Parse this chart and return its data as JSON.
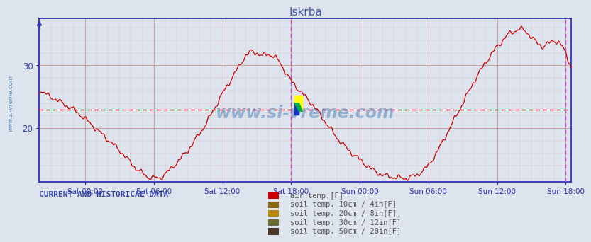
{
  "title": "Iskrba",
  "title_color": "#4455aa",
  "bg_color": "#dde4ee",
  "plot_bg_color": "#dde4ee",
  "line_color": "#cc0000",
  "hline_color": "#cc0000",
  "hline_y": 23.0,
  "vline_color": "#cc44cc",
  "ylim": [
    11.5,
    37.5
  ],
  "yticks": [
    20,
    30
  ],
  "xlabel_color": "#3344aa",
  "ylabel_color": "#3344aa",
  "watermark": "www.si-vreme.com",
  "watermark_color": "#5588bb",
  "sidebar_text": "www.si-vreme.com",
  "sidebar_color": "#5588bb",
  "legend_labels": [
    "air temp.[F]",
    "soil temp. 10cm / 4in[F]",
    "soil temp. 20cm / 8in[F]",
    "soil temp. 30cm / 12in[F]",
    "soil temp. 50cm / 20in[F]"
  ],
  "legend_colors": [
    "#cc0000",
    "#8B6914",
    "#b8860b",
    "#6B6B3A",
    "#4a3728"
  ],
  "footer_label": "CURRENT AND HISTORICAL DATA",
  "footer_color": "#3344aa",
  "x_tick_labels": [
    "Sat 00:00",
    "Sat 06:00",
    "Sat 12:00",
    "Sat 18:00",
    "Sun 00:00",
    "Sun 06:00",
    "Sun 12:00",
    "Sun 18:00"
  ],
  "grid_color_major": "#cc9999",
  "grid_color_minor": "#ddbbbb",
  "spine_color": "#3333bb",
  "icon_yellow": "#ffff00",
  "icon_blue": "#1133cc",
  "icon_green": "#00aa44"
}
